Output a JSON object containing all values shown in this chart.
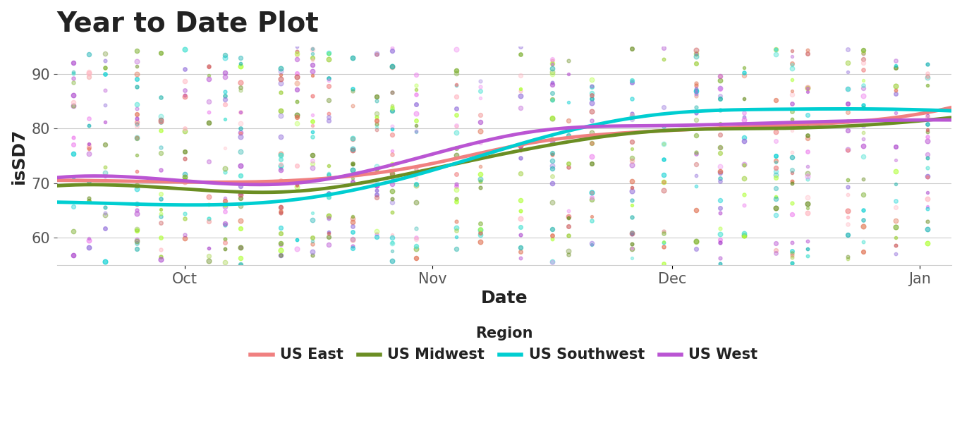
{
  "title": "Year to Date Plot",
  "xlabel": "Date",
  "ylabel": "isSD7",
  "ylim": [
    55,
    95
  ],
  "yticks": [
    60,
    70,
    80,
    90
  ],
  "x_tick_labels": [
    "Oct",
    "Nov",
    "Dec",
    "Jan"
  ],
  "background_color": "#ffffff",
  "regions": [
    "US East",
    "US Midwest",
    "US Southwest",
    "US West"
  ],
  "line_colors": [
    "#F08080",
    "#6B8E23",
    "#00CED1",
    "#BA55D3"
  ],
  "line_colors_scatter": [
    "#F4A0A0",
    "#8FBC4F",
    "#48D1CC",
    "#CC77DD"
  ],
  "curves": {
    "US East": {
      "x": [
        0,
        15,
        30,
        45,
        60,
        75,
        90,
        105,
        115
      ],
      "y": [
        70.5,
        70.2,
        70.5,
        73.0,
        77.5,
        79.5,
        80.5,
        82.0,
        85.0
      ]
    },
    "US Midwest": {
      "x": [
        0,
        15,
        30,
        45,
        60,
        75,
        90,
        105,
        115
      ],
      "y": [
        69.5,
        69.0,
        68.5,
        72.0,
        76.5,
        79.5,
        80.0,
        81.0,
        82.5
      ]
    },
    "US Southwest": {
      "x": [
        0,
        15,
        30,
        45,
        60,
        75,
        90,
        105,
        115
      ],
      "y": [
        66.5,
        66.0,
        67.0,
        71.5,
        78.0,
        82.5,
        83.5,
        83.5,
        83.0
      ]
    },
    "US West": {
      "x": [
        0,
        15,
        30,
        45,
        60,
        75,
        90,
        105,
        115
      ],
      "y": [
        71.0,
        70.5,
        70.0,
        74.5,
        79.5,
        80.5,
        81.0,
        81.5,
        81.5
      ]
    }
  },
  "scatter_colors": [
    "#F4A0A0",
    "#8FBC4F",
    "#48D1CC",
    "#CC77DD",
    "#F08060",
    "#90EE90",
    "#20B2AA",
    "#DDA0DD"
  ],
  "title_fontsize": 28,
  "axis_label_fontsize": 18,
  "tick_fontsize": 15,
  "legend_fontsize": 15,
  "line_width": 3.5
}
